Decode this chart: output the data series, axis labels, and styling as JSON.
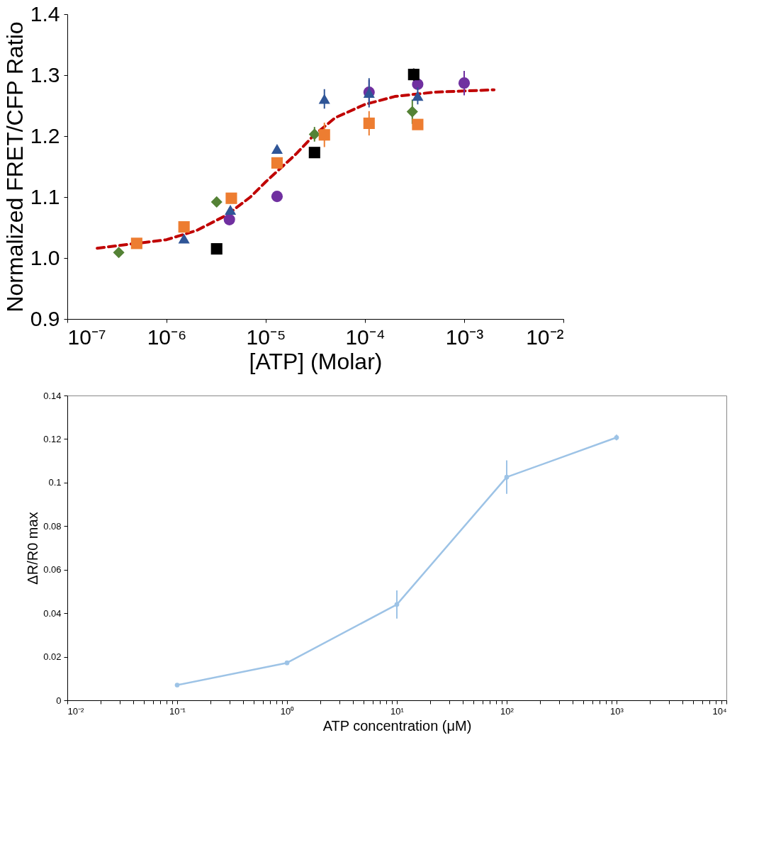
{
  "chart_data": [
    {
      "type": "scatter",
      "xlabel": "[ATP] (Molar)",
      "ylabel": "Normalized FRET/CFP Ratio",
      "log": "x",
      "grid": false,
      "xlim": [
        1e-07,
        0.01
      ],
      "xticks": [
        {
          "value": 1e-07,
          "label": "10⁻⁷"
        },
        {
          "value": 1e-06,
          "label": "10⁻⁶"
        },
        {
          "value": 1e-05,
          "label": "10⁻⁵"
        },
        {
          "value": 0.0001,
          "label": "10⁻⁴"
        },
        {
          "value": 0.001,
          "label": "10⁻³"
        },
        {
          "value": 0.01,
          "label": "10⁻²"
        }
      ],
      "ylim": [
        0.9,
        1.4
      ],
      "yticks": [
        {
          "value": 0.9,
          "label": "0.9"
        },
        {
          "value": 1.0,
          "label": "1.0"
        },
        {
          "value": 1.1,
          "label": "1.1"
        },
        {
          "value": 1.2,
          "label": "1.2"
        },
        {
          "value": 1.3,
          "label": "1.3"
        },
        {
          "value": 1.4,
          "label": "1.4"
        }
      ],
      "series": [
        {
          "type": "line",
          "color": "#c00000",
          "line_style": "dashed",
          "marker": "none",
          "x": [
            2e-07,
            5e-07,
            1e-06,
            2e-06,
            4e-06,
            7e-06,
            1e-05,
            2e-05,
            3e-05,
            5e-05,
            0.0001,
            0.0002,
            0.0005,
            0.001,
            0.002
          ],
          "values": [
            1.016,
            1.024,
            1.03,
            1.045,
            1.07,
            1.1,
            1.125,
            1.17,
            1.2,
            1.23,
            1.252,
            1.265,
            1.272,
            1.274,
            1.276
          ]
        },
        {
          "color": "#548235",
          "marker": "diamond",
          "x": [
            3.3e-07,
            3.2e-06,
            3.1e-05,
            0.0003
          ],
          "values": [
            1.009,
            1.092,
            1.203,
            1.24
          ],
          "errors": [
            null,
            null,
            0.012,
            0.02
          ]
        },
        {
          "color": "#ed7d31",
          "marker": "square",
          "x": [
            5e-07,
            1.5e-06,
            4.5e-06,
            1.3e-05,
            3.9e-05,
            0.00011,
            0.00034
          ],
          "values": [
            1.024,
            1.051,
            1.098,
            1.156,
            1.202,
            1.221,
            1.219
          ],
          "errors": [
            null,
            null,
            null,
            null,
            0.02,
            0.02,
            null
          ]
        },
        {
          "color": "#7030a0",
          "marker": "circle",
          "x": [
            4.3e-06,
            1.3e-05,
            0.00011,
            0.00034,
            0.001
          ],
          "values": [
            1.063,
            1.101,
            1.272,
            1.285,
            1.287
          ],
          "errors": [
            null,
            null,
            0.02,
            null,
            0.02
          ]
        },
        {
          "color": "#2f5597",
          "marker": "triangle",
          "x": [
            1.5e-06,
            4.4e-06,
            1.3e-05,
            3.9e-05,
            0.00011,
            0.00034
          ],
          "values": [
            1.032,
            1.079,
            1.179,
            1.261,
            1.271,
            1.266
          ],
          "errors": [
            null,
            null,
            null,
            0.016,
            0.024,
            0.014
          ]
        },
        {
          "color": "#000000",
          "marker": "square",
          "x": [
            3.2e-06,
            3.1e-05,
            0.00031
          ],
          "values": [
            1.015,
            1.173,
            1.301
          ],
          "errors": [
            null,
            null,
            0.01
          ]
        }
      ]
    },
    {
      "type": "line",
      "xlabel": "ATP concentration (μM)",
      "ylabel": "ΔR/R0 max",
      "log": "x",
      "grid": false,
      "marker": "circle",
      "xlim": [
        0.01,
        10000
      ],
      "xticks": [
        {
          "value": 0.01,
          "label": "10⁻²"
        },
        {
          "value": 0.02,
          "label": null
        },
        {
          "value": 0.03,
          "label": null
        },
        {
          "value": 0.04,
          "label": null
        },
        {
          "value": 0.05,
          "label": null
        },
        {
          "value": 0.06,
          "label": null
        },
        {
          "value": 0.07,
          "label": null
        },
        {
          "value": 0.08,
          "label": null
        },
        {
          "value": 0.09,
          "label": null
        },
        {
          "value": 0.1,
          "label": "10⁻¹"
        },
        {
          "value": 0.2,
          "label": null
        },
        {
          "value": 0.3,
          "label": null
        },
        {
          "value": 0.4,
          "label": null
        },
        {
          "value": 0.5,
          "label": null
        },
        {
          "value": 0.6,
          "label": null
        },
        {
          "value": 0.7,
          "label": null
        },
        {
          "value": 0.8,
          "label": null
        },
        {
          "value": 0.9,
          "label": null
        },
        {
          "value": 1,
          "label": "10⁰"
        },
        {
          "value": 2,
          "label": null
        },
        {
          "value": 3,
          "label": null
        },
        {
          "value": 4,
          "label": null
        },
        {
          "value": 5,
          "label": null
        },
        {
          "value": 6,
          "label": null
        },
        {
          "value": 7,
          "label": null
        },
        {
          "value": 8,
          "label": null
        },
        {
          "value": 9,
          "label": null
        },
        {
          "value": 10,
          "label": "10¹"
        },
        {
          "value": 20,
          "label": null
        },
        {
          "value": 30,
          "label": null
        },
        {
          "value": 40,
          "label": null
        },
        {
          "value": 50,
          "label": null
        },
        {
          "value": 60,
          "label": null
        },
        {
          "value": 70,
          "label": null
        },
        {
          "value": 80,
          "label": null
        },
        {
          "value": 90,
          "label": null
        },
        {
          "value": 100,
          "label": "10²"
        },
        {
          "value": 200,
          "label": null
        },
        {
          "value": 300,
          "label": null
        },
        {
          "value": 400,
          "label": null
        },
        {
          "value": 500,
          "label": null
        },
        {
          "value": 600,
          "label": null
        },
        {
          "value": 700,
          "label": null
        },
        {
          "value": 800,
          "label": null
        },
        {
          "value": 900,
          "label": null
        },
        {
          "value": 1000,
          "label": "10³"
        },
        {
          "value": 2000,
          "label": null
        },
        {
          "value": 3000,
          "label": null
        },
        {
          "value": 4000,
          "label": null
        },
        {
          "value": 5000,
          "label": null
        },
        {
          "value": 6000,
          "label": null
        },
        {
          "value": 7000,
          "label": null
        },
        {
          "value": 8000,
          "label": null
        },
        {
          "value": 9000,
          "label": null
        },
        {
          "value": 10000,
          "label": "10⁴"
        }
      ],
      "ylim": [
        0,
        0.14
      ],
      "yticks": [
        0,
        0.02,
        0.04,
        0.06,
        0.08,
        0.1,
        0.12,
        0.14
      ],
      "series": [
        {
          "color": "#9dc3e6",
          "line_style": "solid",
          "x": [
            0.1,
            1,
            10,
            100,
            1000
          ],
          "values": [
            0.007,
            0.0172,
            0.044,
            0.1025,
            0.1207
          ],
          "errors": [
            0.0004,
            0.0008,
            0.0065,
            0.0077,
            0.0013
          ]
        }
      ]
    }
  ]
}
